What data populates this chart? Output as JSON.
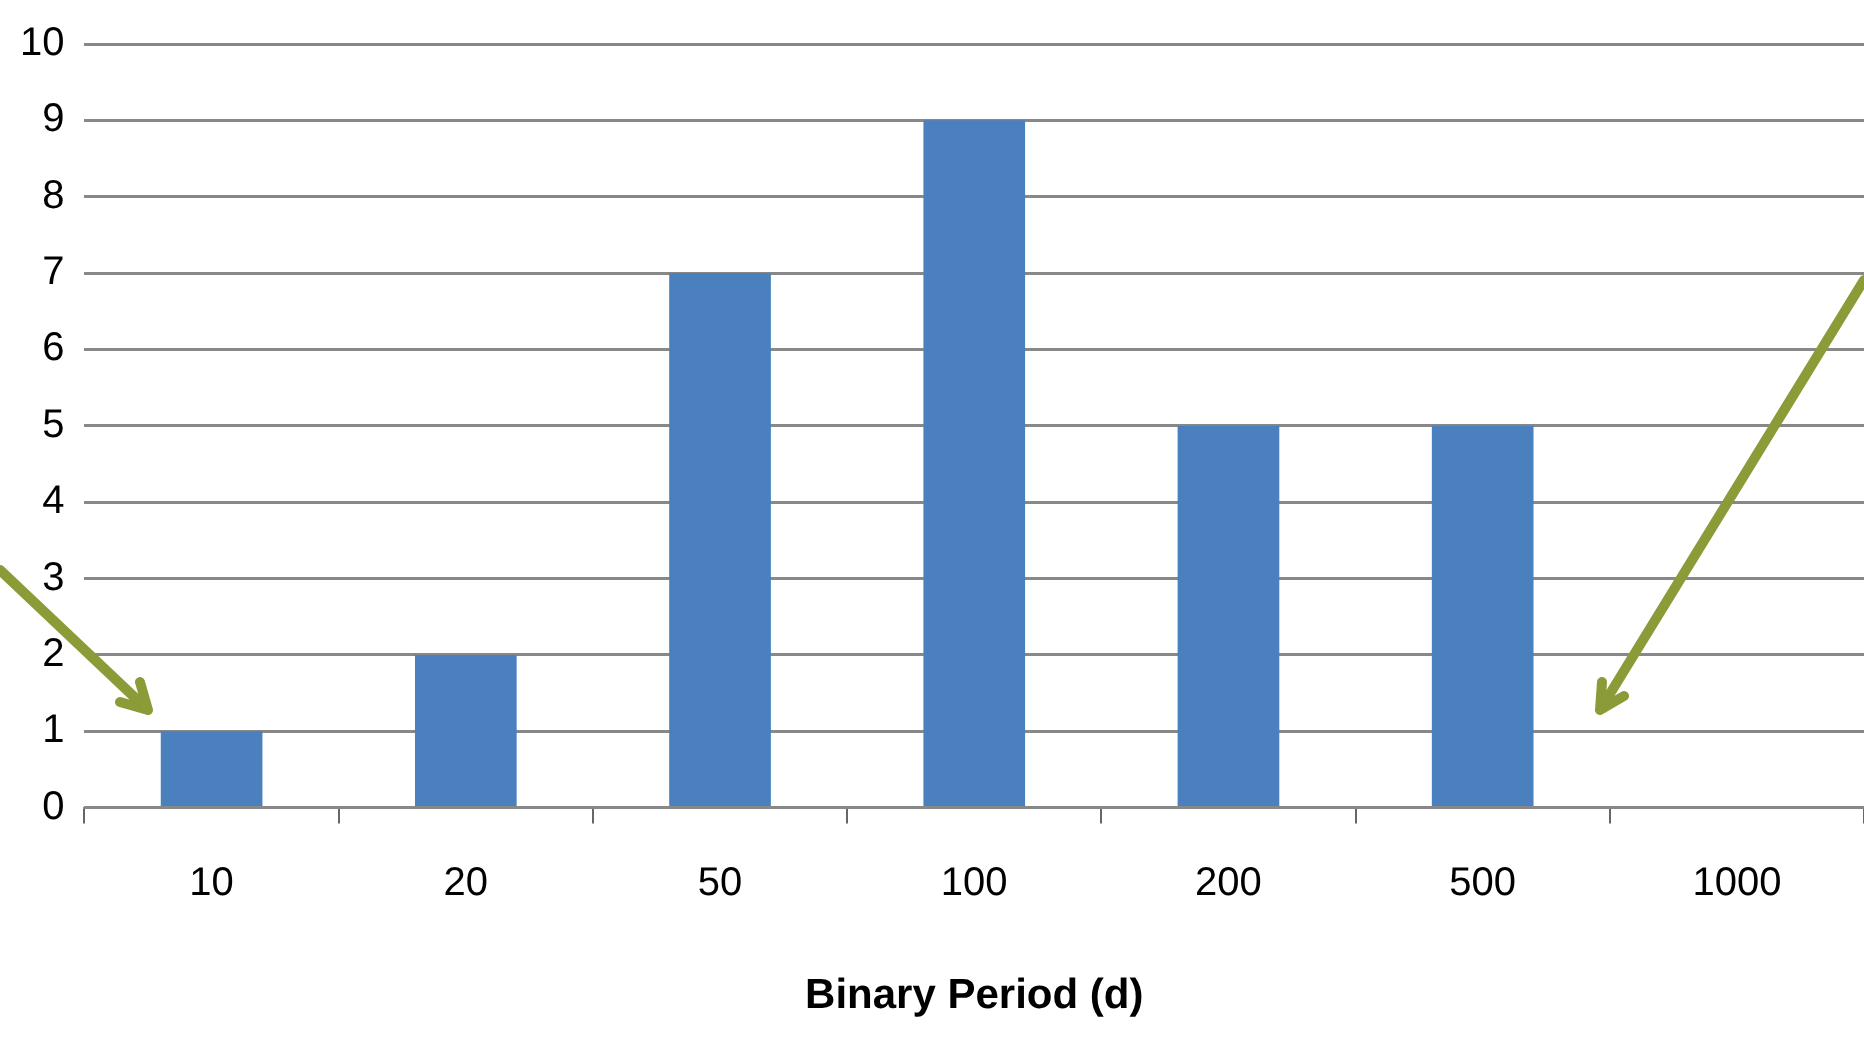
{
  "chart_data": {
    "type": "bar",
    "xlabel": "Binary Period (d)",
    "categories": [
      "10",
      "20",
      "50",
      "100",
      "200",
      "500",
      "1000"
    ],
    "values": [
      1,
      2,
      7,
      9,
      5,
      5,
      0
    ],
    "color": "#4a80be",
    "ylim": [
      0,
      10
    ],
    "yticks": [
      0,
      1,
      2,
      3,
      4,
      5,
      6,
      7,
      8,
      9,
      10
    ],
    "grid": "y",
    "legend": false
  }
}
